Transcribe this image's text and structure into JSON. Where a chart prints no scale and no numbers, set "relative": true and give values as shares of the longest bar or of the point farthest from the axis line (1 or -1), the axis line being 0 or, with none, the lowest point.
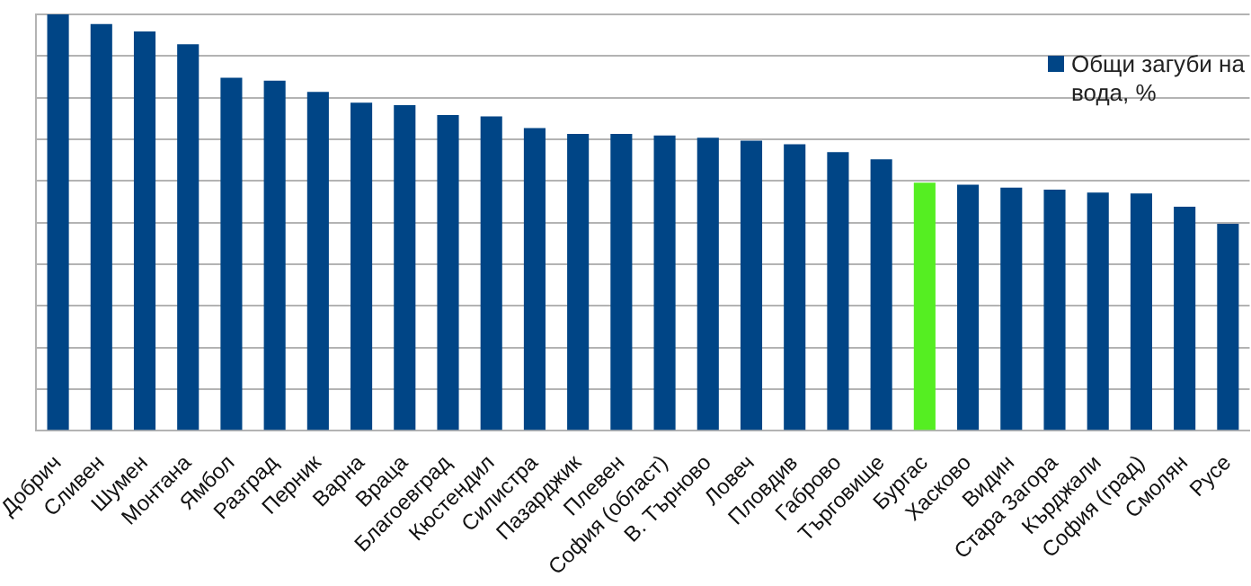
{
  "chart_data": {
    "type": "bar",
    "relative": true,
    "grid": "y",
    "legend": "top right",
    "categories": [
      "Добрич",
      "Сливен",
      "Шумен",
      "Монтана",
      "Ямбол",
      "Разград",
      "Перник",
      "Варна",
      "Враца",
      "Благоевград",
      "Кюстендил",
      "Силистра",
      "Пазарджик",
      "Плевен",
      "София (област)",
      "В. Търново",
      "Ловеч",
      "Пловдив",
      "Габрово",
      "Търговище",
      "Бургас",
      "Хасково",
      "Видин",
      "Стара Загора",
      "Кърджали",
      "София (град)",
      "Смолян",
      "Русе"
    ],
    "series": [
      {
        "name": "Общи загуби на вода, %",
        "color": "#004586",
        "colors": [
          "#004586",
          "#004586",
          "#004586",
          "#004586",
          "#004586",
          "#004586",
          "#004586",
          "#004586",
          "#004586",
          "#004586",
          "#004586",
          "#004586",
          "#004586",
          "#004586",
          "#004586",
          "#004586",
          "#004586",
          "#004586",
          "#004586",
          "#004586",
          "#55ee22",
          "#004586",
          "#004586",
          "#004586",
          "#004586",
          "#004586",
          "#004586",
          "#004586"
        ],
        "values": [
          1.0,
          0.977,
          0.959,
          0.928,
          0.848,
          0.841,
          0.814,
          0.788,
          0.782,
          0.758,
          0.755,
          0.727,
          0.713,
          0.713,
          0.709,
          0.704,
          0.697,
          0.688,
          0.669,
          0.652,
          0.596,
          0.591,
          0.584,
          0.579,
          0.572,
          0.57,
          0.538,
          0.497
        ]
      }
    ]
  }
}
